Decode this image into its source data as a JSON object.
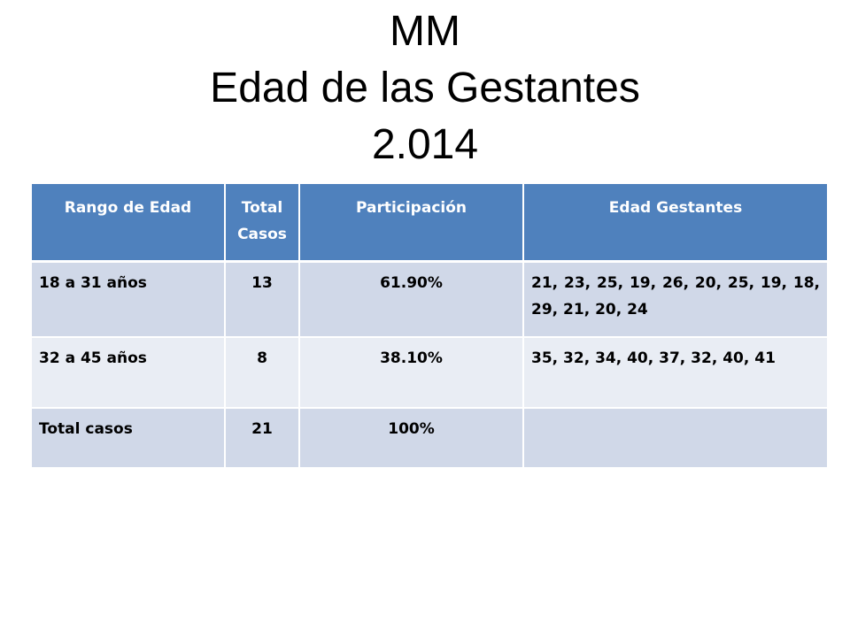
{
  "title": {
    "line1": "MM",
    "line2": "Edad de las Gestantes",
    "line3": "2.014"
  },
  "table": {
    "headers": [
      "Rango de Edad",
      "Total Casos",
      "Participación",
      "Edad Gestantes"
    ],
    "rows": [
      [
        "18 a 31 años",
        "13",
        "61.90%",
        "21, 23, 25, 19, 26, 20, 25, 19, 18, 29, 21, 20, 24"
      ],
      [
        "32 a 45 años",
        "8",
        "38.10%",
        "35, 32, 34, 40, 37, 32, 40, 41"
      ],
      [
        "Total casos",
        "21",
        "100%",
        ""
      ]
    ]
  },
  "colors": {
    "header_bg": "#4f81bd",
    "row_dark": "#d0d8e8",
    "row_light": "#e9edf4"
  }
}
